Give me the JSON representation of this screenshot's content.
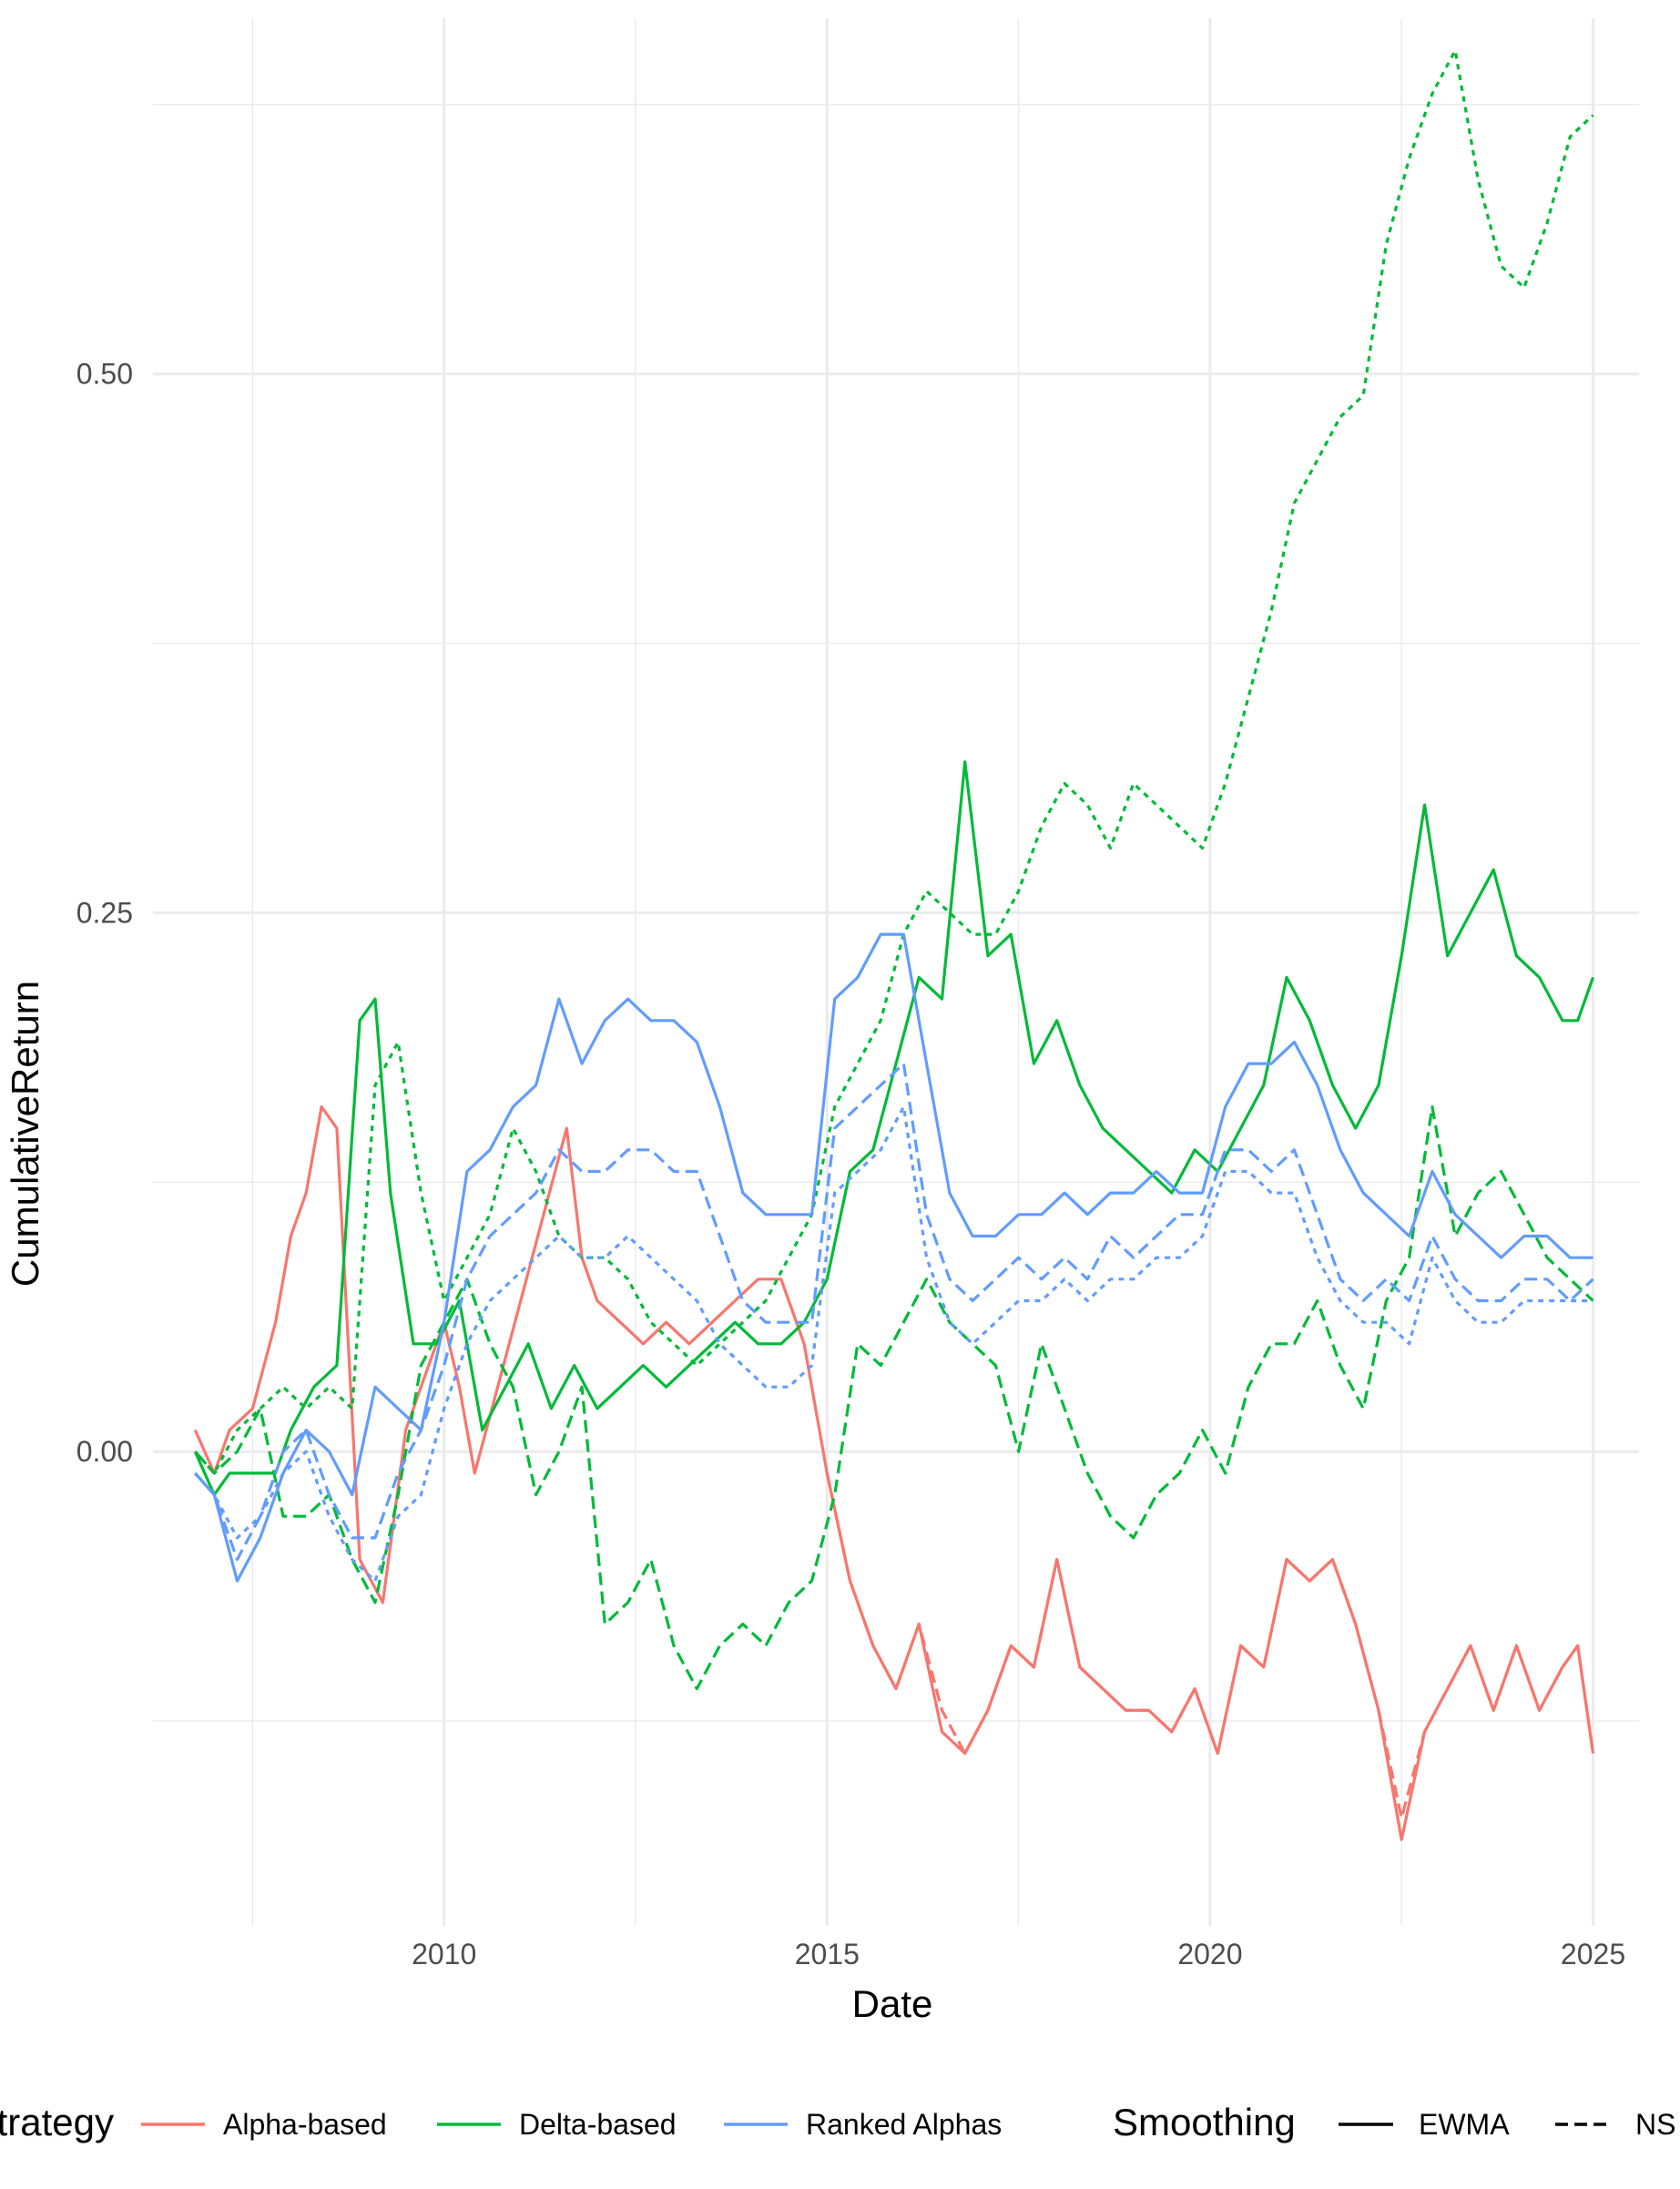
{
  "chart_data": {
    "type": "line",
    "xlabel": "Date",
    "ylabel": "CumulativeReturn",
    "xlim": [
      2006.2,
      2025.6
    ],
    "ylim": [
      -0.22,
      0.665
    ],
    "x_ticks": [
      {
        "value": 2010,
        "label": "2010"
      },
      {
        "value": 2015,
        "label": "2015"
      },
      {
        "value": 2020,
        "label": "2020"
      },
      {
        "value": 2025,
        "label": "2025"
      }
    ],
    "y_ticks": [
      {
        "value": 0.0,
        "label": "0.00"
      },
      {
        "value": 0.25,
        "label": "0.25"
      },
      {
        "value": 0.5,
        "label": "0.50"
      }
    ],
    "x_minor": [
      2007.5,
      2012.5,
      2017.5,
      2022.5
    ],
    "y_minor": [
      -0.125,
      0.125,
      0.375,
      0.625
    ],
    "grid": true,
    "legend_position": "bottom",
    "legend": {
      "strategy_title": "Strategy",
      "smoothing_title": "Smoothing",
      "strategies": [
        {
          "name": "Alpha-based",
          "color": "#F8766D"
        },
        {
          "name": "Delta-based",
          "color": "#00BA38"
        },
        {
          "name": "Ranked Alphas",
          "color": "#619CFF"
        }
      ],
      "smoothings": [
        {
          "name": "EWMA",
          "dash": "solid"
        },
        {
          "name": "NS",
          "dash": "dashed"
        }
      ]
    },
    "series": [
      {
        "strategy": "Alpha-based",
        "smoothing": "EWMA",
        "color": "#F8766D",
        "dash": "solid",
        "x": [
          2006.75,
          2007.0,
          2007.2,
          2007.5,
          2007.8,
          2008.0,
          2008.2,
          2008.4,
          2008.6,
          2008.9,
          2009.2,
          2009.5,
          2009.8,
          2010.0,
          2010.2,
          2010.4,
          2010.7,
          2011.0,
          2011.3,
          2011.6,
          2011.8,
          2012.0,
          2012.3,
          2012.6,
          2012.9,
          2013.2,
          2013.5,
          2013.8,
          2014.1,
          2014.4,
          2014.7,
          2015.0,
          2015.3,
          2015.6,
          2015.9,
          2016.2,
          2016.5,
          2016.8,
          2017.1,
          2017.4,
          2017.7,
          2018.0,
          2018.3,
          2018.6,
          2018.9,
          2019.2,
          2019.5,
          2019.8,
          2020.1,
          2020.4,
          2020.7,
          2021.0,
          2021.3,
          2021.6,
          2021.9,
          2022.2,
          2022.5,
          2022.8,
          2023.1,
          2023.4,
          2023.7,
          2024.0,
          2024.3,
          2024.6,
          2024.8,
          2025.0
        ],
        "y": [
          0.01,
          -0.01,
          0.01,
          0.02,
          0.06,
          0.1,
          0.12,
          0.16,
          0.15,
          -0.05,
          -0.07,
          0.01,
          0.04,
          0.06,
          0.03,
          -0.01,
          0.03,
          0.07,
          0.11,
          0.15,
          0.09,
          0.07,
          0.06,
          0.05,
          0.06,
          0.05,
          0.06,
          0.07,
          0.08,
          0.08,
          0.05,
          -0.01,
          -0.06,
          -0.09,
          -0.11,
          -0.08,
          -0.13,
          -0.14,
          -0.12,
          -0.09,
          -0.1,
          -0.05,
          -0.1,
          -0.11,
          -0.12,
          -0.12,
          -0.13,
          -0.11,
          -0.14,
          -0.09,
          -0.1,
          -0.05,
          -0.06,
          -0.05,
          -0.08,
          -0.12,
          -0.18,
          -0.13,
          -0.11,
          -0.09,
          -0.12,
          -0.09,
          -0.12,
          -0.1,
          -0.09,
          -0.14
        ]
      },
      {
        "strategy": "Alpha-based",
        "smoothing": "NS",
        "color": "#F8766D",
        "dash": "dashed",
        "x": [
          2015.0,
          2015.3,
          2015.6,
          2015.9,
          2016.2,
          2016.5,
          2016.8,
          2017.1,
          2017.4,
          2017.7,
          2018.0,
          2018.3,
          2018.6,
          2018.9,
          2019.2,
          2019.5,
          2019.8,
          2020.1,
          2020.4,
          2020.7,
          2021.0,
          2021.3,
          2021.6,
          2021.9,
          2022.2,
          2022.5,
          2022.8,
          2023.1,
          2023.4,
          2023.7,
          2024.0,
          2024.3,
          2024.6,
          2024.8,
          2025.0
        ],
        "y": [
          -0.01,
          -0.06,
          -0.09,
          -0.11,
          -0.08,
          -0.12,
          -0.14,
          -0.12,
          -0.09,
          -0.1,
          -0.05,
          -0.1,
          -0.11,
          -0.12,
          -0.12,
          -0.13,
          -0.11,
          -0.14,
          -0.09,
          -0.1,
          -0.05,
          -0.06,
          -0.05,
          -0.08,
          -0.12,
          -0.17,
          -0.13,
          -0.11,
          -0.09,
          -0.12,
          -0.09,
          -0.12,
          -0.1,
          -0.09,
          -0.14
        ]
      },
      {
        "strategy": "Delta-based",
        "smoothing": "EWMA",
        "color": "#00BA38",
        "dash": "solid",
        "x": [
          2006.75,
          2007.0,
          2007.2,
          2007.5,
          2007.8,
          2008.0,
          2008.3,
          2008.6,
          2008.9,
          2009.1,
          2009.3,
          2009.6,
          2009.9,
          2010.2,
          2010.5,
          2010.8,
          2011.1,
          2011.4,
          2011.7,
          2012.0,
          2012.3,
          2012.6,
          2012.9,
          2013.2,
          2013.5,
          2013.8,
          2014.1,
          2014.4,
          2014.7,
          2015.0,
          2015.3,
          2015.6,
          2015.9,
          2016.2,
          2016.5,
          2016.8,
          2017.1,
          2017.4,
          2017.7,
          2018.0,
          2018.3,
          2018.6,
          2018.9,
          2019.2,
          2019.5,
          2019.8,
          2020.1,
          2020.4,
          2020.7,
          2021.0,
          2021.3,
          2021.6,
          2021.9,
          2022.2,
          2022.5,
          2022.8,
          2023.1,
          2023.4,
          2023.7,
          2024.0,
          2024.3,
          2024.6,
          2024.8,
          2025.0
        ],
        "y": [
          0.0,
          -0.02,
          -0.01,
          -0.01,
          -0.01,
          0.01,
          0.03,
          0.04,
          0.2,
          0.21,
          0.12,
          0.05,
          0.05,
          0.07,
          0.01,
          0.03,
          0.05,
          0.02,
          0.04,
          0.02,
          0.03,
          0.04,
          0.03,
          0.04,
          0.05,
          0.06,
          0.05,
          0.05,
          0.06,
          0.08,
          0.13,
          0.14,
          0.18,
          0.22,
          0.21,
          0.32,
          0.23,
          0.24,
          0.18,
          0.2,
          0.17,
          0.15,
          0.14,
          0.13,
          0.12,
          0.14,
          0.13,
          0.15,
          0.17,
          0.22,
          0.2,
          0.17,
          0.15,
          0.17,
          0.23,
          0.3,
          0.23,
          0.25,
          0.27,
          0.23,
          0.22,
          0.2,
          0.2,
          0.22
        ]
      },
      {
        "strategy": "Delta-based",
        "smoothing": "NS",
        "color": "#00BA38",
        "dash": "dashed",
        "x": [
          2006.75,
          2007.0,
          2007.3,
          2007.6,
          2007.9,
          2008.2,
          2008.5,
          2008.8,
          2009.1,
          2009.4,
          2009.7,
          2010.0,
          2010.3,
          2010.6,
          2010.9,
          2011.2,
          2011.5,
          2011.8,
          2012.1,
          2012.4,
          2012.7,
          2013.0,
          2013.3,
          2013.6,
          2013.9,
          2014.2,
          2014.5,
          2014.8,
          2015.1,
          2015.4,
          2015.7,
          2016.0,
          2016.3,
          2016.6,
          2016.9,
          2017.2,
          2017.5,
          2017.8,
          2018.1,
          2018.4,
          2018.7,
          2019.0,
          2019.3,
          2019.6,
          2019.9,
          2020.2,
          2020.5,
          2020.8,
          2021.1,
          2021.4,
          2021.7,
          2022.0,
          2022.3,
          2022.6,
          2022.9,
          2023.2,
          2023.5,
          2023.8,
          2024.1,
          2024.4,
          2024.7,
          2025.0
        ],
        "y": [
          0.0,
          -0.01,
          0.0,
          0.02,
          -0.03,
          -0.03,
          -0.02,
          -0.05,
          -0.07,
          -0.02,
          0.04,
          0.06,
          0.08,
          0.05,
          0.03,
          -0.02,
          0.0,
          0.03,
          -0.08,
          -0.07,
          -0.05,
          -0.09,
          -0.11,
          -0.09,
          -0.08,
          -0.09,
          -0.07,
          -0.06,
          -0.02,
          0.05,
          0.04,
          0.06,
          0.08,
          0.06,
          0.05,
          0.04,
          0.0,
          0.05,
          0.02,
          -0.01,
          -0.03,
          -0.04,
          -0.02,
          -0.01,
          0.01,
          -0.01,
          0.03,
          0.05,
          0.05,
          0.07,
          0.04,
          0.02,
          0.07,
          0.09,
          0.16,
          0.1,
          0.12,
          0.13,
          0.11,
          0.09,
          0.08,
          0.07
        ]
      },
      {
        "strategy": "Delta-based",
        "smoothing": "NS (dotted)",
        "color": "#00BA38",
        "dash": "dotted",
        "x": [
          2006.75,
          2007.0,
          2007.3,
          2007.6,
          2007.9,
          2008.2,
          2008.5,
          2008.8,
          2009.1,
          2009.4,
          2009.7,
          2010.0,
          2010.3,
          2010.6,
          2010.9,
          2011.2,
          2011.5,
          2011.8,
          2012.1,
          2012.4,
          2012.7,
          2013.0,
          2013.3,
          2013.6,
          2013.9,
          2014.2,
          2014.5,
          2014.8,
          2015.1,
          2015.4,
          2015.7,
          2016.0,
          2016.3,
          2016.6,
          2016.9,
          2017.2,
          2017.5,
          2017.8,
          2018.1,
          2018.4,
          2018.7,
          2019.0,
          2019.3,
          2019.6,
          2019.9,
          2020.2,
          2020.5,
          2020.8,
          2021.1,
          2021.4,
          2021.7,
          2022.0,
          2022.3,
          2022.6,
          2022.9,
          2023.2,
          2023.5,
          2023.8,
          2024.1,
          2024.4,
          2024.7,
          2025.0
        ],
        "y": [
          0.0,
          -0.01,
          0.01,
          0.02,
          0.03,
          0.02,
          0.03,
          0.02,
          0.17,
          0.19,
          0.12,
          0.07,
          0.09,
          0.11,
          0.15,
          0.13,
          0.1,
          0.09,
          0.09,
          0.08,
          0.06,
          0.05,
          0.04,
          0.05,
          0.06,
          0.07,
          0.09,
          0.11,
          0.16,
          0.18,
          0.2,
          0.24,
          0.26,
          0.25,
          0.24,
          0.24,
          0.26,
          0.29,
          0.31,
          0.3,
          0.28,
          0.31,
          0.3,
          0.29,
          0.28,
          0.31,
          0.35,
          0.39,
          0.44,
          0.46,
          0.48,
          0.49,
          0.56,
          0.6,
          0.63,
          0.65,
          0.59,
          0.55,
          0.54,
          0.57,
          0.61,
          0.62
        ]
      },
      {
        "strategy": "Ranked Alphas",
        "smoothing": "EWMA",
        "color": "#619CFF",
        "dash": "solid",
        "x": [
          2006.75,
          2007.0,
          2007.3,
          2007.6,
          2007.9,
          2008.2,
          2008.5,
          2008.8,
          2009.1,
          2009.4,
          2009.7,
          2010.0,
          2010.3,
          2010.6,
          2010.9,
          2011.2,
          2011.5,
          2011.8,
          2012.1,
          2012.4,
          2012.7,
          2013.0,
          2013.3,
          2013.6,
          2013.9,
          2014.2,
          2014.5,
          2014.8,
          2015.1,
          2015.4,
          2015.7,
          2016.0,
          2016.3,
          2016.6,
          2016.9,
          2017.2,
          2017.5,
          2017.8,
          2018.1,
          2018.4,
          2018.7,
          2019.0,
          2019.3,
          2019.6,
          2019.9,
          2020.2,
          2020.5,
          2020.8,
          2021.1,
          2021.4,
          2021.7,
          2022.0,
          2022.3,
          2022.6,
          2022.9,
          2023.2,
          2023.5,
          2023.8,
          2024.1,
          2024.4,
          2024.7,
          2025.0
        ],
        "y": [
          -0.01,
          -0.02,
          -0.06,
          -0.04,
          -0.01,
          0.01,
          0.0,
          -0.02,
          0.03,
          0.02,
          0.01,
          0.06,
          0.13,
          0.14,
          0.16,
          0.17,
          0.21,
          0.18,
          0.2,
          0.21,
          0.2,
          0.2,
          0.19,
          0.16,
          0.12,
          0.11,
          0.11,
          0.11,
          0.21,
          0.22,
          0.24,
          0.24,
          0.18,
          0.12,
          0.1,
          0.1,
          0.11,
          0.11,
          0.12,
          0.11,
          0.12,
          0.12,
          0.13,
          0.12,
          0.12,
          0.16,
          0.18,
          0.18,
          0.19,
          0.17,
          0.14,
          0.12,
          0.11,
          0.1,
          0.13,
          0.11,
          0.1,
          0.09,
          0.1,
          0.1,
          0.09,
          0.09
        ]
      },
      {
        "strategy": "Ranked Alphas",
        "smoothing": "NS",
        "color": "#619CFF",
        "dash": "dashed",
        "x": [
          2006.75,
          2007.0,
          2007.3,
          2007.6,
          2007.9,
          2008.2,
          2008.5,
          2008.8,
          2009.1,
          2009.4,
          2009.7,
          2010.0,
          2010.3,
          2010.6,
          2010.9,
          2011.2,
          2011.5,
          2011.8,
          2012.1,
          2012.4,
          2012.7,
          2013.0,
          2013.3,
          2013.6,
          2013.9,
          2014.2,
          2014.5,
          2014.8,
          2015.1,
          2015.4,
          2015.7,
          2016.0,
          2016.3,
          2016.6,
          2016.9,
          2017.2,
          2017.5,
          2017.8,
          2018.1,
          2018.4,
          2018.7,
          2019.0,
          2019.3,
          2019.6,
          2019.9,
          2020.2,
          2020.5,
          2020.8,
          2021.1,
          2021.4,
          2021.7,
          2022.0,
          2022.3,
          2022.6,
          2022.9,
          2023.2,
          2023.5,
          2023.8,
          2024.1,
          2024.4,
          2024.7,
          2025.0
        ],
        "y": [
          -0.01,
          -0.02,
          -0.05,
          -0.03,
          0.0,
          0.01,
          -0.02,
          -0.04,
          -0.04,
          -0.01,
          0.01,
          0.04,
          0.08,
          0.1,
          0.11,
          0.12,
          0.14,
          0.13,
          0.13,
          0.14,
          0.14,
          0.13,
          0.13,
          0.1,
          0.07,
          0.06,
          0.06,
          0.06,
          0.15,
          0.16,
          0.17,
          0.18,
          0.11,
          0.08,
          0.07,
          0.08,
          0.09,
          0.08,
          0.09,
          0.08,
          0.1,
          0.09,
          0.1,
          0.11,
          0.11,
          0.14,
          0.14,
          0.13,
          0.14,
          0.11,
          0.08,
          0.07,
          0.08,
          0.07,
          0.1,
          0.08,
          0.07,
          0.07,
          0.08,
          0.08,
          0.07,
          0.08
        ]
      },
      {
        "strategy": "Ranked Alphas",
        "smoothing": "NS (dotted)",
        "color": "#619CFF",
        "dash": "dotted",
        "x": [
          2006.75,
          2007.0,
          2007.3,
          2007.6,
          2007.9,
          2008.2,
          2008.5,
          2008.8,
          2009.1,
          2009.4,
          2009.7,
          2010.0,
          2010.3,
          2010.6,
          2010.9,
          2011.2,
          2011.5,
          2011.8,
          2012.1,
          2012.4,
          2012.7,
          2013.0,
          2013.3,
          2013.6,
          2013.9,
          2014.2,
          2014.5,
          2014.8,
          2015.1,
          2015.4,
          2015.7,
          2016.0,
          2016.3,
          2016.6,
          2016.9,
          2017.2,
          2017.5,
          2017.8,
          2018.1,
          2018.4,
          2018.7,
          2019.0,
          2019.3,
          2019.6,
          2019.9,
          2020.2,
          2020.5,
          2020.8,
          2021.1,
          2021.4,
          2021.7,
          2022.0,
          2022.3,
          2022.6,
          2022.9,
          2023.2,
          2023.5,
          2023.8,
          2024.1,
          2024.4,
          2024.7,
          2025.0
        ],
        "y": [
          -0.01,
          -0.02,
          -0.04,
          -0.03,
          -0.01,
          0.0,
          -0.03,
          -0.05,
          -0.06,
          -0.03,
          -0.02,
          0.02,
          0.05,
          0.07,
          0.08,
          0.09,
          0.1,
          0.09,
          0.09,
          0.1,
          0.09,
          0.08,
          0.07,
          0.05,
          0.04,
          0.03,
          0.03,
          0.04,
          0.12,
          0.13,
          0.14,
          0.16,
          0.09,
          0.06,
          0.05,
          0.06,
          0.07,
          0.07,
          0.08,
          0.07,
          0.08,
          0.08,
          0.09,
          0.09,
          0.1,
          0.13,
          0.13,
          0.12,
          0.12,
          0.09,
          0.07,
          0.06,
          0.06,
          0.05,
          0.09,
          0.07,
          0.06,
          0.06,
          0.07,
          0.07,
          0.07,
          0.07
        ]
      }
    ]
  }
}
